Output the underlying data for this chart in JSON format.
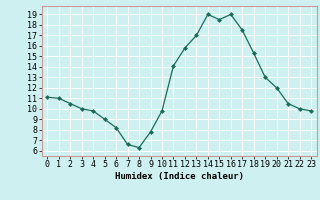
{
  "x": [
    0,
    1,
    2,
    3,
    4,
    5,
    6,
    7,
    8,
    9,
    10,
    11,
    12,
    13,
    14,
    15,
    16,
    17,
    18,
    19,
    20,
    21,
    22,
    23
  ],
  "y": [
    11.1,
    11.0,
    10.5,
    10.0,
    9.8,
    9.0,
    8.2,
    6.6,
    6.3,
    7.8,
    9.8,
    14.1,
    15.8,
    17.0,
    19.0,
    18.5,
    19.0,
    17.5,
    15.3,
    13.0,
    12.0,
    10.5,
    10.0,
    9.8
  ],
  "line_color": "#1a6b5a",
  "marker": "D",
  "marker_size": 2.0,
  "bg_color": "#cff0f0",
  "grid_color": "#ffffff",
  "border_color": "#cc9999",
  "xlabel": "Humidex (Indice chaleur)",
  "ylabel": "",
  "xlim": [
    -0.5,
    23.5
  ],
  "ylim": [
    5.5,
    19.8
  ],
  "yticks": [
    6,
    7,
    8,
    9,
    10,
    11,
    12,
    13,
    14,
    15,
    16,
    17,
    18,
    19
  ],
  "xticks": [
    0,
    1,
    2,
    3,
    4,
    5,
    6,
    7,
    8,
    9,
    10,
    11,
    12,
    13,
    14,
    15,
    16,
    17,
    18,
    19,
    20,
    21,
    22,
    23
  ],
  "xlabel_fontsize": 6.5,
  "tick_fontsize": 6.0
}
